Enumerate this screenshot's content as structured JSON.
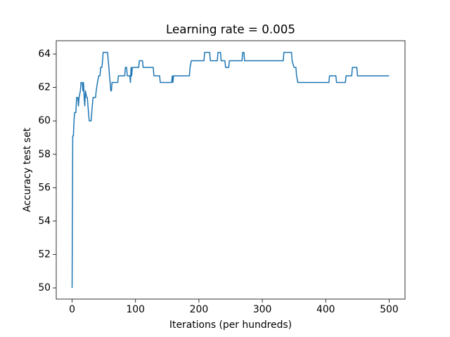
{
  "chart_data": {
    "type": "line",
    "title": "Learning rate = 0.005",
    "xlabel": "Iterations (per hundreds)",
    "ylabel": "Accuracy test set",
    "color": "#1f77b4",
    "x": [
      0,
      1,
      2,
      3,
      4,
      6,
      7,
      9,
      10,
      11,
      13,
      14,
      16,
      17,
      18,
      19,
      20,
      21,
      23,
      24,
      25,
      27,
      30,
      31,
      33,
      37,
      38,
      40,
      42,
      44,
      45,
      47,
      48,
      49,
      56,
      57,
      58,
      59,
      60,
      61,
      62,
      63,
      72,
      73,
      83,
      84,
      86,
      87,
      91,
      92,
      93,
      94,
      95,
      105,
      106,
      111,
      112,
      128,
      129,
      138,
      139,
      157,
      158,
      159,
      160,
      185,
      186,
      188,
      208,
      209,
      217,
      218,
      229,
      230,
      234,
      235,
      241,
      242,
      247,
      248,
      268,
      269,
      271,
      272,
      333,
      334,
      346,
      347,
      350,
      353,
      354,
      356,
      405,
      406,
      416,
      417,
      431,
      432,
      441,
      442,
      449,
      450,
      500
    ],
    "values": [
      50,
      59.1,
      59.1,
      60.0,
      60.5,
      60.5,
      61.4,
      61.4,
      60.9,
      61.4,
      61.8,
      62.3,
      62.3,
      61.8,
      62.3,
      61.4,
      60.9,
      61.8,
      61.4,
      61.4,
      60.9,
      60.0,
      60.0,
      60.5,
      61.4,
      61.4,
      61.8,
      62.3,
      62.7,
      62.7,
      63.2,
      63.2,
      63.6,
      64.1,
      64.1,
      63.6,
      63.2,
      62.7,
      62.3,
      61.8,
      61.8,
      62.3,
      62.3,
      62.7,
      62.7,
      63.2,
      63.2,
      62.7,
      62.7,
      62.3,
      63.2,
      62.7,
      63.2,
      63.2,
      63.6,
      63.6,
      63.2,
      63.2,
      62.7,
      62.7,
      62.3,
      62.3,
      62.7,
      62.3,
      62.7,
      62.7,
      63.2,
      63.6,
      63.6,
      64.1,
      64.1,
      63.6,
      63.6,
      64.1,
      64.1,
      63.6,
      63.6,
      63.2,
      63.2,
      63.6,
      63.6,
      64.1,
      64.1,
      63.6,
      63.6,
      64.1,
      64.1,
      63.6,
      63.2,
      63.2,
      62.7,
      62.3,
      62.3,
      62.7,
      62.7,
      62.3,
      62.3,
      62.7,
      62.7,
      63.2,
      63.2,
      62.7,
      62.7
    ],
    "xlim": [
      -25,
      525
    ],
    "xticks": [
      0,
      100,
      200,
      300,
      400,
      500
    ],
    "ylim": [
      49.33,
      64.8
    ],
    "yticks": [
      50,
      52,
      54,
      56,
      58,
      60,
      62,
      64
    ]
  }
}
